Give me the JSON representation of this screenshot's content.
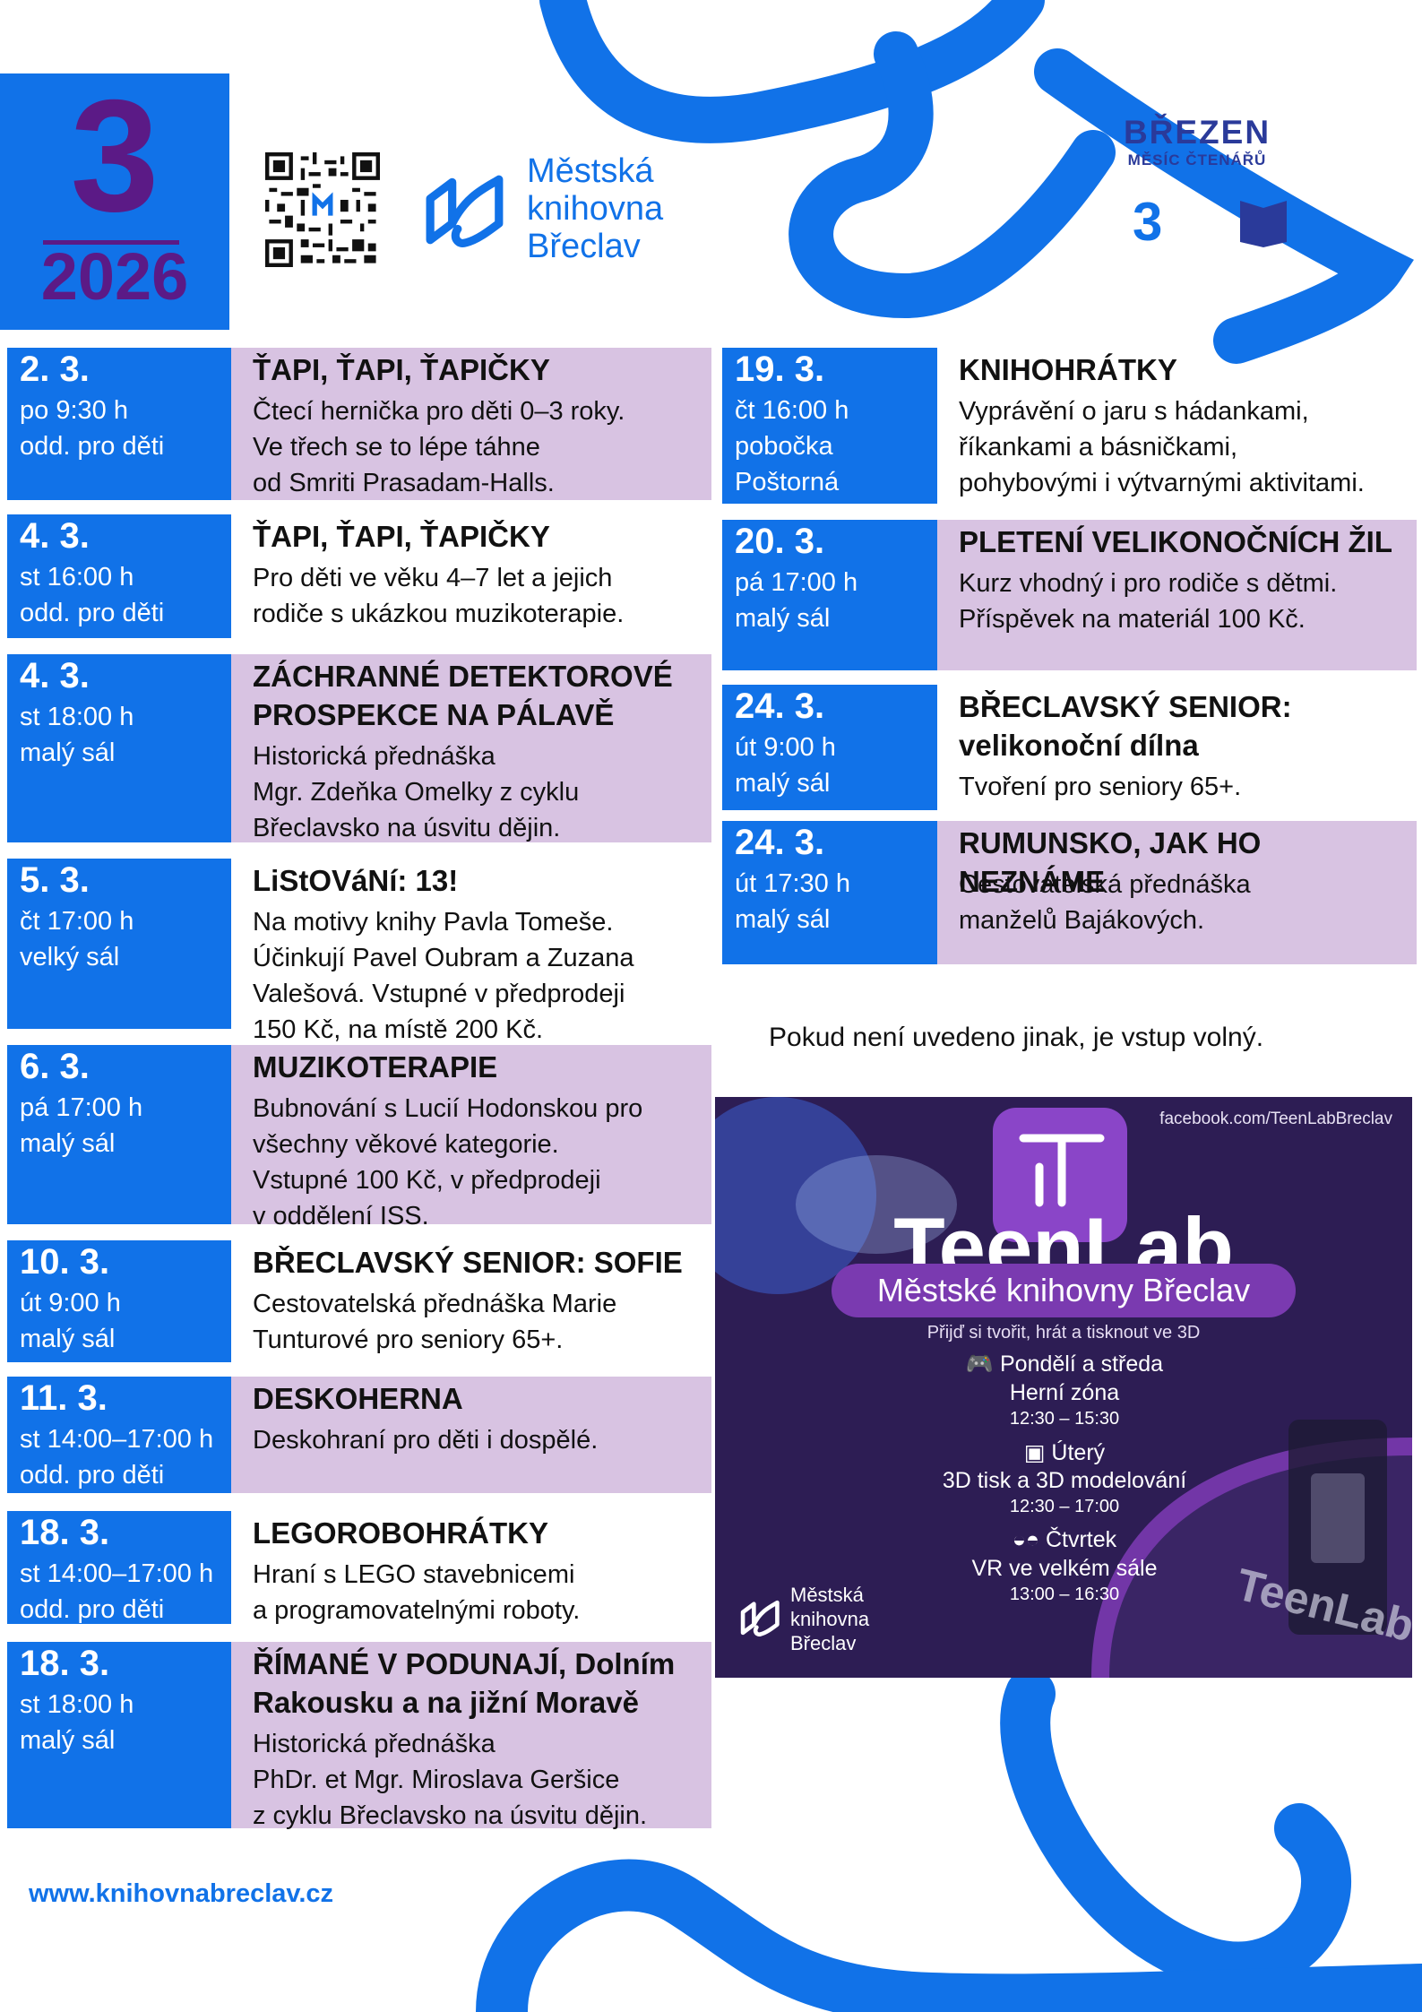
{
  "header": {
    "month_number": "3",
    "year": "2026",
    "library_name": [
      "Městská",
      "knihovna",
      "Břeclav"
    ],
    "campaign_title": "BŘEZEN",
    "campaign_subtitle": "MĚSÍC ČTENÁŘŮ",
    "campaign_icons": [
      "3",
      "moon-icon",
      "book-icon"
    ]
  },
  "colors": {
    "accent_blue": "#1172e8",
    "lilac": "#d8c3e2",
    "purple": "#5b1a86",
    "teenlab_bg": "#2d1d54"
  },
  "events_left": [
    {
      "date": "2. 3.",
      "time": "po 9:30 h",
      "place": "odd. pro děti",
      "title": "ŤAPI, ŤAPI, ŤAPIČKY",
      "lines": [
        "Čtecí hernička pro děti 0–3 roky.",
        "Ve třech se to lépe táhne",
        "od Smriti Prasadam-Halls."
      ]
    },
    {
      "date": "4. 3.",
      "time": "st 16:00 h",
      "place": "odd. pro děti",
      "title": "ŤAPI, ŤAPI, ŤAPIČKY",
      "lines": [
        "Pro děti ve věku 4–7 let a jejich",
        "rodiče s ukázkou muzikoterapie."
      ]
    },
    {
      "date": "4. 3.",
      "time": "st 18:00 h",
      "place": "malý sál",
      "title": "ZÁCHRANNÉ DETEKTOROVÉ PROSPEKCE NA PÁLAVĚ",
      "lines": [
        "Historická přednáška",
        "Mgr. Zdeňka Omelky z cyklu",
        "Břeclavsko na úsvitu dějin."
      ]
    },
    {
      "date": "5. 3.",
      "time": "čt 17:00 h",
      "place": "velký sál",
      "title": "LiStOVáNí: 13!",
      "lines": [
        "Na motivy knihy Pavla Tomeše.",
        "Účinkují Pavel Oubram a Zuzana",
        "Valešová. Vstupné v předprodeji",
        "150 Kč, na místě 200 Kč."
      ]
    },
    {
      "date": "6. 3.",
      "time": "pá 17:00 h",
      "place": "malý sál",
      "title": "MUZIKOTERAPIE",
      "lines": [
        "Bubnování s Lucií Hodonskou pro",
        "všechny věkové kategorie.",
        "Vstupné 100 Kč, v předprodeji",
        "v oddělení ISS."
      ]
    },
    {
      "date": "10. 3.",
      "time": "út 9:00 h",
      "place": "malý sál",
      "title": "BŘECLAVSKÝ SENIOR: SOFIE",
      "lines": [
        "Cestovatelská přednáška Marie",
        "Tunturové pro seniory 65+."
      ]
    },
    {
      "date": "11. 3.",
      "time": "st 14:00–17:00 h",
      "place": "odd. pro děti",
      "title": "DESKOHERNA",
      "lines": [
        "Deskohraní pro děti i dospělé."
      ]
    },
    {
      "date": "18. 3.",
      "time": "st 14:00–17:00 h",
      "place": "odd. pro děti",
      "title": "LEGOROBOHRÁTKY",
      "lines": [
        "Hraní s LEGO stavebnicemi",
        "a programovatelnými roboty."
      ]
    },
    {
      "date": "18. 3.",
      "time": "st 18:00 h",
      "place": "malý sál",
      "title": "ŘÍMANÉ V PODUNAJÍ, Dolním Rakousku a na jižní Moravě",
      "lines": [
        "Historická přednáška",
        "PhDr. et Mgr. Miroslava Geršice",
        "z cyklu Břeclavsko na úsvitu dějin."
      ]
    }
  ],
  "events_right": [
    {
      "date": "19. 3.",
      "time": "čt 16:00 h",
      "place": "pobočka Poštorná",
      "title": "KNIHOHRÁTKY",
      "lines": [
        "Vyprávění o jaru s hádankami,",
        "říkankami a básničkami,",
        "pohybovými i výtvarnými aktivitami."
      ]
    },
    {
      "date": "20. 3.",
      "time": "pá 17:00 h",
      "place": "malý sál",
      "title": "PLETENÍ VELIKONOČNÍCH ŽIL",
      "lines": [
        "Kurz vhodný i pro rodiče s dětmi.",
        "Příspěvek na materiál 100 Kč."
      ]
    },
    {
      "date": "24. 3.",
      "time": "út 9:00 h",
      "place": "malý sál",
      "title": "BŘECLAVSKÝ SENIOR: velikonoční dílna",
      "lines": [
        "Tvoření pro seniory 65+."
      ]
    },
    {
      "date": "24. 3.",
      "time": "út 17:30 h",
      "place": "malý sál",
      "title": "RUMUNSKO, JAK HO NEZNÁME",
      "lines": [
        "Cestovatelská přednáška",
        "manželů Bajákových."
      ]
    }
  ],
  "free_entry_note": "Pokud není uvedeno jinak, je vstup volný.",
  "teenlab": {
    "facebook": "facebook.com/TeenLabBreclav",
    "name": "TeenLab",
    "subtitle": "Městské knihovny Břeclav",
    "tagline": "Přijď si tvořit, hrát a tisknout ve 3D",
    "sessions": [
      {
        "icon": "gamepad-icon",
        "day": "Pondělí a středa",
        "activity": "Herní zóna",
        "time": "12:30 – 15:30"
      },
      {
        "icon": "printer-icon",
        "day": "Úterý",
        "activity": "3D tisk a 3D modelování",
        "time": "12:30 – 17:00"
      },
      {
        "icon": "vr-headset-icon",
        "day": "Čtvrtek",
        "activity": "VR ve velkém sále",
        "time": "13:00 – 16:30"
      }
    ],
    "logo_text": [
      "Městská",
      "knihovna",
      "Břeclav"
    ],
    "watermark": "TeenLab"
  },
  "footer": {
    "website": "www.knihovnabreclav.cz"
  }
}
